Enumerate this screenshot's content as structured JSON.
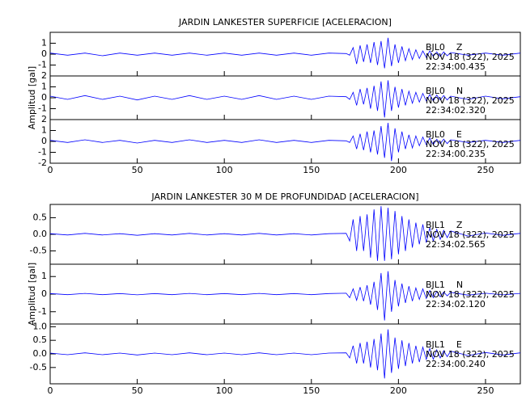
{
  "chart_data": [
    {
      "type": "line",
      "title": "JARDIN LANKESTER SUPERFICIE [ACELERACION]",
      "ylabel": "Amplitud [gal]",
      "xlim": [
        0,
        270
      ],
      "xticks": [
        0,
        50,
        100,
        150,
        200,
        250
      ],
      "color": "#0000ff",
      "x": [
        0,
        10,
        20,
        30,
        40,
        50,
        60,
        70,
        80,
        90,
        100,
        110,
        120,
        130,
        140,
        150,
        160,
        170,
        172,
        174,
        176,
        178,
        180,
        182,
        184,
        186,
        188,
        190,
        192,
        194,
        196,
        198,
        200,
        202,
        204,
        206,
        208,
        210,
        212,
        214,
        216,
        218,
        220,
        222,
        224,
        226,
        228,
        230,
        240,
        250,
        260,
        270
      ],
      "panels": [
        {
          "lines": [
            "BJL0    Z",
            "NOV 18 (322), 2025",
            "22:34:00.435"
          ],
          "ylim": [
            -2,
            2
          ],
          "yticks": [
            -1,
            0,
            1
          ],
          "values": [
            0.1,
            -0.1,
            0.1,
            -0.15,
            0.1,
            -0.1,
            0.1,
            -0.1,
            0.1,
            -0.1,
            0.1,
            -0.1,
            0.1,
            -0.1,
            0.1,
            -0.1,
            0.1,
            0.05,
            -0.1,
            0.6,
            -0.9,
            0.8,
            -0.7,
            0.9,
            -0.8,
            1.1,
            -1.0,
            1.2,
            -1.3,
            1.5,
            -1.1,
            0.9,
            -0.8,
            0.7,
            -0.6,
            0.5,
            -0.5,
            0.4,
            -0.4,
            0.3,
            -0.3,
            0.3,
            -0.2,
            0.2,
            -0.2,
            0.2,
            -0.15,
            0.15,
            -0.1,
            0.1,
            -0.1,
            0.1
          ]
        },
        {
          "lines": [
            "BJL0    N",
            "NOV 18 (322), 2025",
            "22:34:02.320"
          ],
          "ylim": [
            -2,
            2
          ],
          "yticks": [
            -1,
            0,
            1,
            2
          ],
          "values": [
            0.15,
            -0.15,
            0.2,
            -0.15,
            0.15,
            -0.2,
            0.15,
            -0.15,
            0.2,
            -0.15,
            0.15,
            -0.15,
            0.2,
            -0.15,
            0.15,
            -0.15,
            0.15,
            0.1,
            -0.15,
            0.5,
            -0.7,
            0.8,
            -0.6,
            0.9,
            -1.0,
            1.1,
            -1.2,
            1.5,
            -1.8,
            1.6,
            -1.2,
            1.0,
            -0.9,
            0.8,
            -0.7,
            0.6,
            -0.5,
            0.5,
            -0.4,
            0.4,
            -0.3,
            0.3,
            -0.3,
            0.25,
            -0.2,
            0.2,
            -0.2,
            0.15,
            -0.15,
            0.15,
            -0.1,
            0.1
          ]
        },
        {
          "lines": [
            "BJL0    E",
            "NOV 18 (322), 2025",
            "22:34:00.235"
          ],
          "ylim": [
            -2,
            2
          ],
          "yticks": [
            -2,
            -1,
            0,
            1,
            2
          ],
          "values": [
            0.1,
            -0.1,
            0.15,
            -0.1,
            0.1,
            -0.15,
            0.1,
            -0.1,
            0.15,
            -0.1,
            0.1,
            -0.1,
            0.15,
            -0.1,
            0.1,
            -0.1,
            0.1,
            0.05,
            -0.1,
            0.5,
            -0.7,
            0.7,
            -0.8,
            0.9,
            -1.0,
            1.0,
            -1.2,
            1.4,
            -1.5,
            1.7,
            -1.8,
            1.2,
            -1.0,
            0.9,
            -0.7,
            0.6,
            -0.6,
            0.5,
            -0.4,
            0.4,
            -0.3,
            0.3,
            -0.3,
            0.2,
            -0.2,
            0.2,
            -0.2,
            0.15,
            -0.1,
            0.1,
            -0.1,
            0.1
          ]
        }
      ]
    },
    {
      "type": "line",
      "title": "JARDIN LANKESTER 30 M DE PROFUNDIDAD [ACELERACION]",
      "ylabel": "Amplitud [gal]",
      "xlim": [
        0,
        270
      ],
      "xticks": [
        0,
        50,
        100,
        150,
        200,
        250
      ],
      "color": "#0000ff",
      "x": [
        0,
        10,
        20,
        30,
        40,
        50,
        60,
        70,
        80,
        90,
        100,
        110,
        120,
        130,
        140,
        150,
        160,
        170,
        172,
        174,
        176,
        178,
        180,
        182,
        184,
        186,
        188,
        190,
        192,
        194,
        196,
        198,
        200,
        202,
        204,
        206,
        208,
        210,
        212,
        214,
        216,
        218,
        220,
        222,
        224,
        226,
        228,
        230,
        240,
        250,
        260,
        270
      ],
      "panels": [
        {
          "lines": [
            "BJL1    Z",
            "NOV 18 (322), 2025",
            "22:34:02.565"
          ],
          "ylim": [
            -0.9,
            0.9
          ],
          "yticks": [
            -0.5,
            {
              "value": 0,
              "label": "0.0"
            },
            0.5
          ],
          "values": [
            0.02,
            -0.02,
            0.03,
            -0.02,
            0.02,
            -0.03,
            0.02,
            -0.02,
            0.03,
            -0.02,
            0.02,
            -0.02,
            0.03,
            -0.02,
            0.02,
            -0.02,
            0.02,
            0.03,
            -0.2,
            0.45,
            -0.5,
            0.55,
            -0.5,
            0.6,
            -0.7,
            0.75,
            -0.8,
            0.85,
            -0.8,
            0.8,
            -0.75,
            0.7,
            -0.6,
            0.55,
            -0.5,
            0.45,
            -0.4,
            0.35,
            -0.3,
            0.3,
            -0.25,
            0.2,
            -0.2,
            0.15,
            -0.15,
            0.12,
            -0.1,
            0.1,
            -0.05,
            0.04,
            -0.03,
            0.03
          ]
        },
        {
          "lines": [
            "BJL1    N",
            "NOV 18 (322), 2025",
            "22:34:02.120"
          ],
          "ylim": [
            -1.7,
            1.7
          ],
          "yticks": [
            -1,
            0,
            1
          ],
          "values": [
            0.03,
            -0.03,
            0.04,
            -0.03,
            0.03,
            -0.04,
            0.03,
            -0.03,
            0.04,
            -0.03,
            0.03,
            -0.03,
            0.04,
            -0.03,
            0.03,
            -0.03,
            0.03,
            0.05,
            -0.2,
            0.3,
            -0.35,
            0.4,
            -0.4,
            0.5,
            -0.6,
            0.7,
            -0.9,
            1.2,
            -1.5,
            1.3,
            -1.0,
            0.8,
            -0.7,
            0.6,
            -0.5,
            0.45,
            -0.4,
            0.35,
            -0.3,
            0.3,
            -0.25,
            0.2,
            -0.2,
            0.15,
            -0.15,
            0.12,
            -0.1,
            0.1,
            -0.06,
            0.05,
            -0.04,
            0.04
          ]
        },
        {
          "lines": [
            "BJL1    E",
            "NOV 18 (322), 2025",
            "22:34:00.240"
          ],
          "ylim": [
            -1.1,
            1.1
          ],
          "yticks": [
            -0.5,
            {
              "value": 0,
              "label": "0.0"
            },
            0.5,
            {
              "value": 1,
              "label": "1.0"
            }
          ],
          "values": [
            0.03,
            -0.03,
            0.04,
            -0.03,
            0.03,
            -0.04,
            0.03,
            -0.03,
            0.04,
            -0.03,
            0.03,
            -0.03,
            0.04,
            -0.03,
            0.03,
            -0.03,
            0.03,
            0.04,
            -0.15,
            0.3,
            -0.35,
            0.4,
            -0.35,
            0.45,
            -0.5,
            0.55,
            -0.6,
            0.75,
            -0.9,
            0.9,
            -0.7,
            0.6,
            -0.55,
            0.5,
            -0.45,
            0.4,
            -0.35,
            0.3,
            -0.3,
            0.25,
            -0.2,
            0.2,
            -0.2,
            0.15,
            -0.15,
            0.12,
            -0.1,
            0.1,
            -0.06,
            0.05,
            -0.04,
            0.04
          ]
        }
      ]
    }
  ]
}
